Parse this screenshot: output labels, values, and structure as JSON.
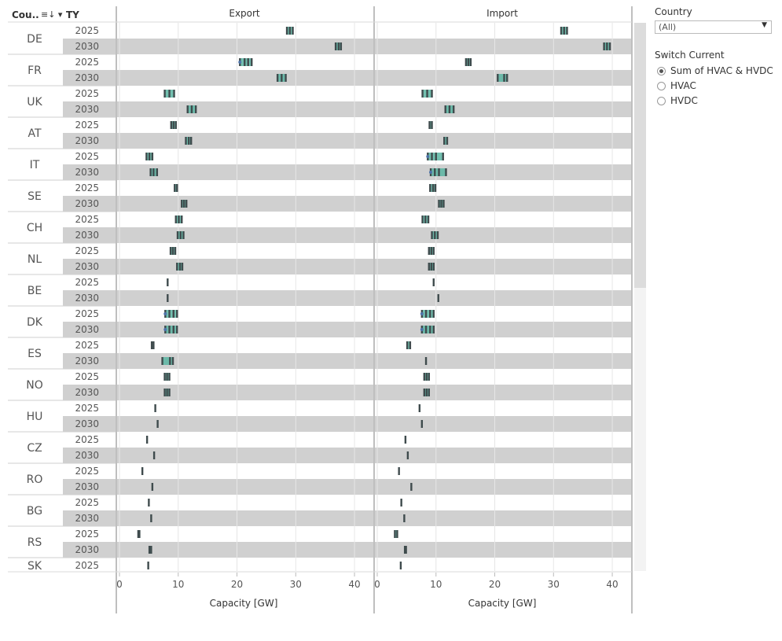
{
  "header": {
    "country_col": "Cou..",
    "sort_icon": "sort-icon",
    "ty_col": "TY"
  },
  "panels": [
    "Export",
    "Import"
  ],
  "filters": {
    "country_label": "Country",
    "country_value": "(All)",
    "switch_label": "Switch Current",
    "options": [
      "Sum of HVAC & HVDC",
      "HVAC",
      "HVDC"
    ],
    "selected_index": 0
  },
  "chart_data": {
    "type": "dot strip",
    "xlabel": "Capacity [GW]",
    "xlim": [
      0,
      42
    ],
    "xticks": [
      0,
      10,
      20,
      30,
      40
    ],
    "years": [
      "2025",
      "2030"
    ],
    "colors": {
      "bar": "#3f4b4d",
      "teal": "#5bb5a2",
      "dot": "#4e73a8",
      "band": "#d0d0d0"
    },
    "rows": [
      {
        "country": "DE",
        "year": "2025",
        "export": [
          28.5,
          29.0,
          29.5
        ],
        "import": [
          31.3,
          31.8,
          32.3
        ]
      },
      {
        "country": "DE",
        "year": "2030",
        "export": [
          36.8,
          37.3,
          37.7
        ],
        "import": [
          38.6,
          39.1,
          39.6
        ]
      },
      {
        "country": "FR",
        "year": "2025",
        "export": [
          20.5,
          21.3,
          21.9,
          22.5
        ],
        "import": [
          15.1,
          15.5,
          15.9
        ]
      },
      {
        "country": "FR",
        "year": "2030",
        "export": [
          26.9,
          27.6,
          28.3
        ],
        "import": [
          20.5,
          21.6,
          22.1
        ]
      },
      {
        "country": "UK",
        "year": "2025",
        "export": [
          7.7,
          8.5,
          9.3
        ],
        "import": [
          7.7,
          8.5,
          9.3
        ]
      },
      {
        "country": "UK",
        "year": "2030",
        "export": [
          11.6,
          12.3,
          13.0
        ],
        "import": [
          11.6,
          12.3,
          13.0
        ]
      },
      {
        "country": "AT",
        "year": "2025",
        "export": [
          8.8,
          9.2,
          9.6
        ],
        "import": [
          8.9,
          9.3
        ]
      },
      {
        "country": "AT",
        "year": "2030",
        "export": [
          11.3,
          11.8,
          12.2
        ],
        "import": [
          11.4,
          11.9
        ]
      },
      {
        "country": "IT",
        "year": "2025",
        "export": [
          4.6,
          5.1,
          5.6
        ],
        "import": [
          8.6,
          9.3,
          10.0,
          11.2
        ]
      },
      {
        "country": "IT",
        "year": "2030",
        "export": [
          5.3,
          5.8,
          6.4
        ],
        "import": [
          9.1,
          9.8,
          10.5,
          11.7
        ]
      },
      {
        "country": "SE",
        "year": "2025",
        "export": [
          9.4,
          9.8
        ],
        "import": [
          9.0,
          9.5,
          9.9
        ]
      },
      {
        "country": "SE",
        "year": "2030",
        "export": [
          10.6,
          11.0,
          11.4
        ],
        "import": [
          10.5,
          10.9,
          11.3
        ]
      },
      {
        "country": "CH",
        "year": "2025",
        "export": [
          9.6,
          10.1,
          10.6
        ],
        "import": [
          7.7,
          8.2,
          8.7
        ]
      },
      {
        "country": "CH",
        "year": "2030",
        "export": [
          9.9,
          10.4,
          10.9
        ],
        "import": [
          9.3,
          9.8,
          10.3
        ]
      },
      {
        "country": "NL",
        "year": "2025",
        "export": [
          8.7,
          9.1,
          9.5
        ],
        "import": [
          8.8,
          9.2,
          9.6
        ]
      },
      {
        "country": "NL",
        "year": "2030",
        "export": [
          9.8,
          10.3,
          10.7
        ],
        "import": [
          8.8,
          9.2,
          9.6
        ]
      },
      {
        "country": "BE",
        "year": "2025",
        "export": [
          8.2
        ],
        "import": [
          9.6
        ]
      },
      {
        "country": "BE",
        "year": "2030",
        "export": [
          8.2
        ],
        "import": [
          10.4
        ]
      },
      {
        "country": "DK",
        "year": "2025",
        "export": [
          7.8,
          8.5,
          9.2,
          9.8
        ],
        "import": [
          7.6,
          8.3,
          9.0,
          9.6
        ]
      },
      {
        "country": "DK",
        "year": "2030",
        "export": [
          7.8,
          8.5,
          9.2,
          9.8
        ],
        "import": [
          7.6,
          8.3,
          9.0,
          9.6
        ]
      },
      {
        "country": "ES",
        "year": "2025",
        "export": [
          5.5,
          5.8
        ],
        "import": [
          5.1,
          5.6
        ]
      },
      {
        "country": "ES",
        "year": "2030",
        "export": [
          7.3,
          8.6,
          9.1
        ],
        "import": [
          8.3
        ]
      },
      {
        "country": "NO",
        "year": "2025",
        "export": [
          7.7,
          8.1,
          8.5
        ],
        "import": [
          8.0,
          8.4,
          8.8
        ]
      },
      {
        "country": "NO",
        "year": "2030",
        "export": [
          7.7,
          8.1,
          8.5
        ],
        "import": [
          8.0,
          8.4,
          8.8
        ]
      },
      {
        "country": "HU",
        "year": "2025",
        "export": [
          6.1
        ],
        "import": [
          7.2
        ]
      },
      {
        "country": "HU",
        "year": "2030",
        "export": [
          6.5
        ],
        "import": [
          7.6
        ]
      },
      {
        "country": "CZ",
        "year": "2025",
        "export": [
          4.7
        ],
        "import": [
          4.8
        ]
      },
      {
        "country": "CZ",
        "year": "2030",
        "export": [
          5.9
        ],
        "import": [
          5.2
        ]
      },
      {
        "country": "RO",
        "year": "2025",
        "export": [
          3.9
        ],
        "import": [
          3.7
        ]
      },
      {
        "country": "RO",
        "year": "2030",
        "export": [
          5.6
        ],
        "import": [
          5.8
        ]
      },
      {
        "country": "BG",
        "year": "2025",
        "export": [
          5.0
        ],
        "import": [
          4.1
        ]
      },
      {
        "country": "BG",
        "year": "2030",
        "export": [
          5.4
        ],
        "import": [
          4.6
        ]
      },
      {
        "country": "RS",
        "year": "2025",
        "export": [
          3.2,
          3.4
        ],
        "import": [
          3.0,
          3.4
        ]
      },
      {
        "country": "RS",
        "year": "2030",
        "export": [
          5.1,
          5.4
        ],
        "import": [
          4.7,
          4.9
        ]
      },
      {
        "country": "SK",
        "year": "2025",
        "export": [
          4.9
        ],
        "import": [
          4.0
        ]
      }
    ]
  }
}
